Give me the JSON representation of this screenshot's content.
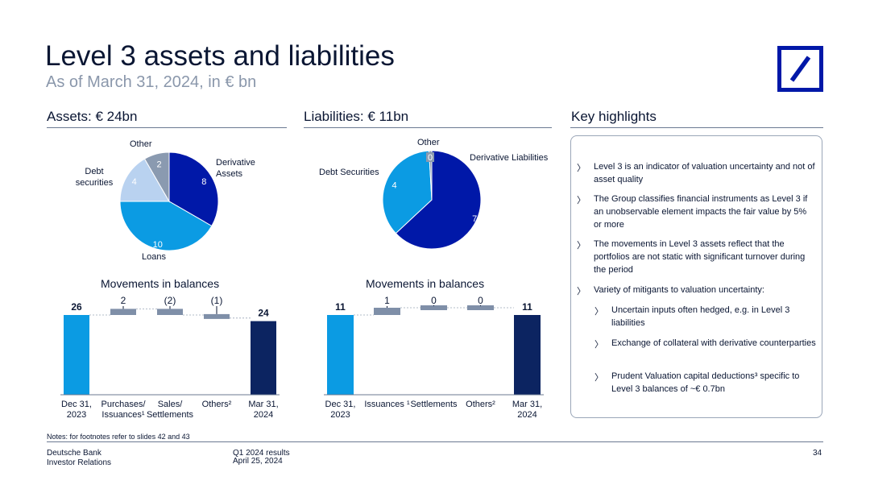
{
  "header": {
    "title": "Level 3 assets and liabilities",
    "subtitle": "As of March 31, 2024, in € bn"
  },
  "sections": {
    "assets_title": "Assets: € 24bn",
    "liabilities_title": "Liabilities: € 11bn",
    "highlights_title": "Key highlights"
  },
  "highlights": [
    "Level 3 is an indicator of valuation uncertainty and not of asset quality",
    "The Group classifies financial instruments as Level 3 if an unobservable element impacts the fair value by 5% or more",
    "The movements in Level 3 assets reflect that the portfolios are not static with significant turnover during the period",
    "Variety of mitigants to valuation uncertainty:"
  ],
  "sub_highlights": [
    "Uncertain inputs often hedged, e.g. in Level 3 liabilities",
    "Exchange of collateral with derivative counterparties",
    "Prudent Valuation capital deductions³ specific to Level 3 balances of ~€ 0.7bn"
  ],
  "footer": {
    "notes": "Notes: for footnotes refer to slides 42 and 43",
    "company": "Deutsche Bank",
    "dept": "Investor Relations",
    "event": "Q1 2024 results",
    "date": "April 25, 2024",
    "page": "34"
  },
  "colors": {
    "navy": "#0018a8",
    "dark_navy": "#0c2461",
    "mid_blue": "#0b9be3",
    "light_blue": "#b9d2f0",
    "gray": "#8a9ab0",
    "bar_gray": "#7f8fa8"
  },
  "icons": {
    "logo": "deutsche-bank-logo"
  },
  "chart_data": [
    {
      "type": "pie",
      "title": "",
      "labels": [
        "Derivative Assets",
        "Loans",
        "Debt securities",
        "Other"
      ],
      "label_text": [
        "Derivative\nAssets",
        "Loans",
        "Debt\nsecurities",
        "Other"
      ],
      "values": [
        8,
        10,
        4,
        2
      ],
      "value_labels": [
        "8",
        "10",
        "4",
        "2"
      ],
      "colors": [
        "#0018a8",
        "#0b9be3",
        "#b9d2f0",
        "#8a9ab0"
      ]
    },
    {
      "type": "pie",
      "title": "",
      "labels": [
        "Derivative Liabilities",
        "Debt Securities",
        "Other"
      ],
      "label_text": [
        "Derivative Liabilities",
        "Debt Securities",
        "Other"
      ],
      "values": [
        7,
        4,
        0.1
      ],
      "value_labels": [
        "7",
        "4",
        "0"
      ],
      "colors": [
        "#0018a8",
        "#0b9be3",
        "#8a9ab0"
      ]
    },
    {
      "type": "bar",
      "subtype": "waterfall",
      "title": "Movements in balances",
      "categories": [
        "Dec 31, 2023",
        "Purchases/ Issuances¹",
        "Sales/ Settlements",
        "Others²",
        "Mar 31, 2024"
      ],
      "category_lines": [
        [
          "Dec 31,",
          "2023"
        ],
        [
          "Purchases/",
          "Issuances¹"
        ],
        [
          "Sales/",
          "Settlements"
        ],
        [
          "Others²"
        ],
        [
          "Mar 31,",
          "2024"
        ]
      ],
      "values": [
        26,
        2,
        -2,
        -1,
        24
      ],
      "value_labels": [
        "26",
        "2",
        "(2)",
        "(1)",
        "24"
      ],
      "kinds": [
        "total",
        "delta",
        "delta",
        "delta",
        "total"
      ]
    },
    {
      "type": "bar",
      "subtype": "waterfall",
      "title": "Movements in balances",
      "categories": [
        "Dec 31, 2023",
        "Issuances ¹",
        "Settlements",
        "Others²",
        "Mar 31, 2024"
      ],
      "category_lines": [
        [
          "Dec 31,",
          "2023"
        ],
        [
          "Issuances ¹"
        ],
        [
          "Settlements"
        ],
        [
          "Others²"
        ],
        [
          "Mar 31,",
          "2024"
        ]
      ],
      "values": [
        11,
        1,
        0,
        0,
        11
      ],
      "value_labels": [
        "11",
        "1",
        "0",
        "0",
        "11"
      ],
      "kinds": [
        "total",
        "delta",
        "delta",
        "delta",
        "total"
      ]
    }
  ]
}
